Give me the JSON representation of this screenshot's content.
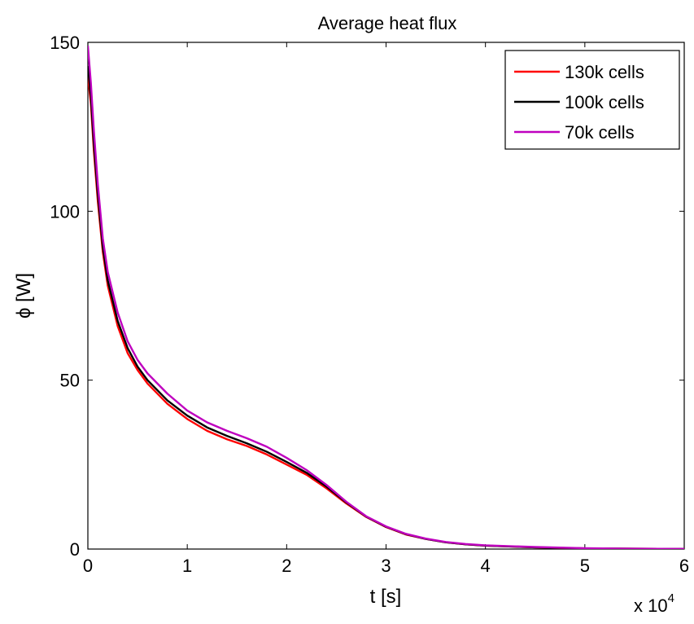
{
  "chart_data": {
    "type": "line",
    "title": "Average heat flux",
    "xlabel": "t [s]",
    "ylabel": "ϕ [W]",
    "x_multiplier": {
      "base": "x 10",
      "exponent": "4"
    },
    "xlim": [
      0,
      6
    ],
    "ylim": [
      0,
      150
    ],
    "xticks": [
      0,
      1,
      2,
      3,
      4,
      5,
      6
    ],
    "yticks": [
      0,
      50,
      100,
      150
    ],
    "xtick_labels": [
      "0",
      "1",
      "2",
      "3",
      "4",
      "5",
      "6"
    ],
    "ytick_labels": [
      "0",
      "50",
      "100",
      "150"
    ],
    "grid": false,
    "legend_position": "top-right",
    "series": [
      {
        "name": "130k cells",
        "color": "#ff0000",
        "x": [
          0,
          0.03,
          0.06,
          0.1,
          0.15,
          0.2,
          0.3,
          0.4,
          0.5,
          0.6,
          0.8,
          1.0,
          1.2,
          1.4,
          1.6,
          1.8,
          2.0,
          2.2,
          2.4,
          2.6,
          2.8,
          3.0,
          3.2,
          3.4,
          3.6,
          3.8,
          4.0,
          4.5,
          5.0,
          5.5,
          6.0
        ],
        "y": [
          140,
          132,
          118,
          103,
          88,
          78,
          66,
          58,
          53,
          49,
          43,
          38.5,
          35,
          32.5,
          30.5,
          28,
          25,
          22,
          18,
          13.5,
          9.5,
          6.5,
          4.3,
          3.0,
          2.0,
          1.4,
          1.0,
          0.5,
          0.2,
          0.1,
          0.05
        ]
      },
      {
        "name": "100k cells",
        "color": "#000000",
        "x": [
          0,
          0.03,
          0.06,
          0.1,
          0.15,
          0.2,
          0.3,
          0.4,
          0.5,
          0.6,
          0.8,
          1.0,
          1.2,
          1.4,
          1.6,
          1.8,
          2.0,
          2.2,
          2.4,
          2.6,
          2.8,
          3.0,
          3.2,
          3.4,
          3.6,
          3.8,
          4.0,
          4.5,
          5.0,
          5.5,
          6.0
        ],
        "y": [
          143,
          134,
          120,
          105,
          89.5,
          79.5,
          67.5,
          59.5,
          54,
          50,
          44,
          39.5,
          36,
          33.5,
          31.3,
          28.8,
          25.8,
          22.6,
          18.5,
          13.8,
          9.6,
          6.6,
          4.4,
          3.0,
          2.0,
          1.4,
          1.0,
          0.5,
          0.2,
          0.1,
          0.05
        ]
      },
      {
        "name": "70k cells",
        "color": "#bf00bf",
        "x": [
          0,
          0.03,
          0.06,
          0.1,
          0.15,
          0.2,
          0.3,
          0.4,
          0.5,
          0.6,
          0.8,
          1.0,
          1.2,
          1.4,
          1.6,
          1.8,
          2.0,
          2.2,
          2.4,
          2.6,
          2.8,
          3.0,
          3.2,
          3.4,
          3.6,
          3.8,
          4.0,
          4.5,
          5.0,
          5.5,
          6.0
        ],
        "y": [
          149,
          138,
          124,
          108,
          92,
          82,
          70,
          61.5,
          56,
          52,
          46,
          41,
          37.5,
          35,
          32.8,
          30.3,
          27,
          23.4,
          19,
          14,
          9.7,
          6.7,
          4.5,
          3.1,
          2.1,
          1.5,
          1.1,
          0.6,
          0.25,
          0.1,
          0.05
        ]
      }
    ]
  }
}
